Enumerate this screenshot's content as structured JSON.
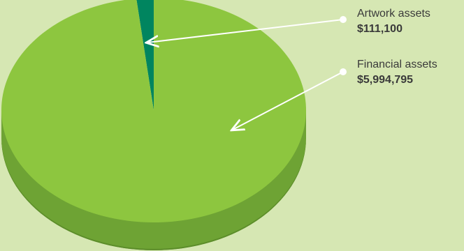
{
  "colors": {
    "background": "#d6e7b3",
    "pie_top": "#8dc63f",
    "pie_side": "#6ea334",
    "pie_side_dark": "#5c8d2a",
    "artwork": "#00855f",
    "artwork_side": "#006a4b",
    "label_text": "#3a3a3a",
    "leader": "#ffffff"
  },
  "chart_data": {
    "type": "pie",
    "title": "",
    "slices": [
      {
        "label": "Artwork assets",
        "value": 111100,
        "display_value": "$111,100",
        "color": "#00855f"
      },
      {
        "label": "Financial assets",
        "value": 5994795,
        "display_value": "$5,994,795",
        "color": "#8dc63f"
      }
    ],
    "start_angle_deg": 0,
    "direction": "counterclockwise",
    "style": "3d-tilted",
    "legend": "callouts-right"
  }
}
